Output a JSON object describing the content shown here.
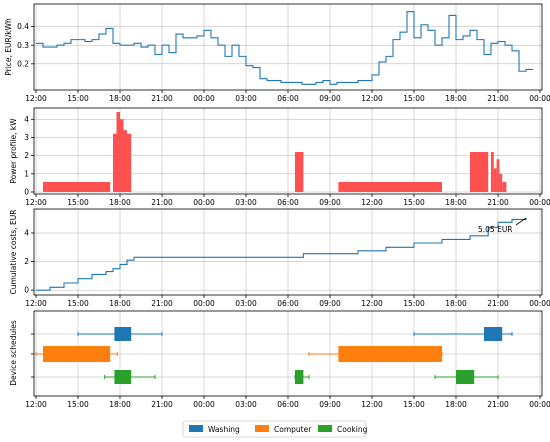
{
  "chart_data": [
    {
      "id": "price",
      "type": "line",
      "ylabel": "Price, EUR/kWh",
      "ylim": [
        0.07,
        0.5
      ],
      "yticks": [
        "0.2",
        "0.3",
        "0.4"
      ],
      "yticks_values": [
        0.2,
        0.3,
        0.4
      ],
      "xticks": [
        "12:00",
        "15:00",
        "18:00",
        "21:00",
        "00:00",
        "03:00",
        "06:00",
        "09:00",
        "12:00",
        "15:00",
        "18:00",
        "21:00",
        "00:00"
      ],
      "grid": true,
      "series_color": "#1f77b4",
      "x_hours": [
        12.0,
        12.5,
        13.0,
        13.5,
        14.0,
        14.5,
        15.0,
        15.5,
        16.0,
        16.5,
        17.0,
        17.5,
        18.0,
        18.5,
        19.0,
        19.5,
        20.0,
        20.5,
        21.0,
        21.5,
        22.0,
        22.5,
        23.0,
        23.5,
        24.0,
        24.5,
        25.0,
        25.5,
        26.0,
        26.5,
        27.0,
        27.5,
        28.0,
        28.5,
        29.0,
        29.5,
        30.0,
        30.5,
        31.0,
        31.5,
        32.0,
        32.5,
        33.0,
        33.5,
        34.0,
        34.5,
        35.0,
        35.5,
        36.0,
        36.5,
        37.0,
        37.5,
        38.0,
        38.5,
        39.0,
        39.5,
        40.0,
        40.5,
        41.0,
        41.5,
        42.0,
        42.5,
        43.0,
        43.5,
        44.0,
        44.5,
        45.0,
        45.5,
        46.0,
        46.5,
        47.0
      ],
      "values": [
        0.31,
        0.29,
        0.29,
        0.3,
        0.31,
        0.33,
        0.33,
        0.32,
        0.33,
        0.36,
        0.39,
        0.31,
        0.3,
        0.3,
        0.31,
        0.29,
        0.3,
        0.25,
        0.3,
        0.26,
        0.36,
        0.34,
        0.34,
        0.35,
        0.38,
        0.34,
        0.3,
        0.24,
        0.3,
        0.24,
        0.19,
        0.18,
        0.12,
        0.11,
        0.11,
        0.1,
        0.1,
        0.1,
        0.09,
        0.09,
        0.1,
        0.11,
        0.09,
        0.1,
        0.1,
        0.1,
        0.11,
        0.11,
        0.14,
        0.21,
        0.24,
        0.33,
        0.37,
        0.48,
        0.34,
        0.41,
        0.38,
        0.3,
        0.34,
        0.46,
        0.33,
        0.35,
        0.38,
        0.33,
        0.25,
        0.31,
        0.32,
        0.3,
        0.27,
        0.16,
        0.17
      ]
    },
    {
      "id": "power",
      "type": "bar",
      "ylabel": "Power profile, kW",
      "ylim": [
        0,
        4.4
      ],
      "yticks": [
        "0",
        "1",
        "2",
        "3",
        "4"
      ],
      "yticks_values": [
        0,
        1,
        2,
        3,
        4
      ],
      "xticks": [
        "12:00",
        "15:00",
        "18:00",
        "21:00",
        "00:00",
        "03:00",
        "06:00",
        "09:00",
        "12:00",
        "15:00",
        "18:00",
        "21:00",
        "00:00"
      ],
      "grid": true,
      "bar_color": "#ff5050",
      "bars": [
        {
          "start": 12.5,
          "end": 17.3,
          "value": 0.55
        },
        {
          "start": 17.5,
          "end": 17.75,
          "value": 3.2
        },
        {
          "start": 17.75,
          "end": 18.0,
          "value": 4.4
        },
        {
          "start": 18.0,
          "end": 18.25,
          "value": 4.0
        },
        {
          "start": 18.25,
          "end": 18.5,
          "value": 3.4
        },
        {
          "start": 18.5,
          "end": 18.8,
          "value": 3.2
        },
        {
          "start": 30.5,
          "end": 31.1,
          "value": 2.2
        },
        {
          "start": 33.6,
          "end": 41.0,
          "value": 0.55
        },
        {
          "start": 43.0,
          "end": 44.3,
          "value": 2.2
        },
        {
          "start": 44.5,
          "end": 44.7,
          "value": 2.2
        },
        {
          "start": 44.7,
          "end": 44.9,
          "value": 1.3
        },
        {
          "start": 44.9,
          "end": 45.1,
          "value": 1.8
        },
        {
          "start": 45.1,
          "end": 45.3,
          "value": 1.0
        },
        {
          "start": 45.3,
          "end": 45.6,
          "value": 0.55
        }
      ]
    },
    {
      "id": "cumulative",
      "type": "line",
      "ylabel": "Cumulative costs, EUR",
      "ylim": [
        -0.2,
        5.4
      ],
      "yticks": [
        "0",
        "2",
        "4"
      ],
      "yticks_values": [
        0,
        2,
        4
      ],
      "xticks": [
        "12:00",
        "15:00",
        "18:00",
        "21:00",
        "00:00",
        "03:00",
        "06:00",
        "09:00",
        "12:00",
        "15:00",
        "18:00",
        "21:00",
        "00:00"
      ],
      "grid": true,
      "series_color": "#1f77b4",
      "x_hours": [
        12.0,
        13.0,
        14.0,
        15.0,
        16.0,
        17.0,
        17.5,
        18.0,
        18.5,
        19.0,
        20.0,
        24.0,
        28.0,
        30.5,
        31.1,
        33.6,
        35.0,
        37.0,
        39.0,
        41.0,
        43.0,
        44.3,
        45.0,
        46.0,
        47.0
      ],
      "values": [
        0.0,
        0.2,
        0.5,
        0.8,
        1.1,
        1.3,
        1.5,
        1.8,
        2.1,
        2.3,
        2.3,
        2.3,
        2.3,
        2.3,
        2.55,
        2.55,
        2.75,
        3.0,
        3.3,
        3.55,
        3.8,
        4.4,
        4.75,
        4.95,
        5.05
      ],
      "annotation": "5.05 EUR"
    },
    {
      "id": "schedules",
      "type": "box",
      "ylabel": "Device schedules",
      "xticks": [
        "12:00",
        "15:00",
        "18:00",
        "21:00",
        "00:00",
        "03:00",
        "06:00",
        "09:00",
        "12:00",
        "15:00",
        "18:00",
        "21:00",
        "00:00"
      ],
      "grid": true,
      "legend_position": "bottom-center",
      "series": [
        {
          "name": "Washing",
          "color": "#1f77b4",
          "lane": 0,
          "windows": [
            {
              "allowed": [
                15.0,
                21.0
              ],
              "run": [
                17.6,
                18.8
              ]
            },
            {
              "allowed": [
                39.0,
                46.0
              ],
              "run": [
                44.0,
                45.3
              ]
            }
          ]
        },
        {
          "name": "Computer",
          "color": "#ff7f0e",
          "lane": 1,
          "windows": [
            {
              "allowed": [
                12.0,
                17.8
              ],
              "run": [
                12.5,
                17.3
              ]
            },
            {
              "allowed": [
                31.5,
                41.0
              ],
              "run": [
                33.6,
                41.0
              ]
            }
          ]
        },
        {
          "name": "Cooking",
          "color": "#2ca02c",
          "lane": 2,
          "windows": [
            {
              "allowed": [
                16.9,
                20.5
              ],
              "run": [
                17.6,
                18.8
              ]
            },
            {
              "allowed": [
                30.5,
                31.5
              ],
              "run": [
                30.5,
                31.1
              ]
            },
            {
              "allowed": [
                40.5,
                45.0
              ],
              "run": [
                42.0,
                43.3
              ]
            }
          ]
        }
      ]
    }
  ]
}
